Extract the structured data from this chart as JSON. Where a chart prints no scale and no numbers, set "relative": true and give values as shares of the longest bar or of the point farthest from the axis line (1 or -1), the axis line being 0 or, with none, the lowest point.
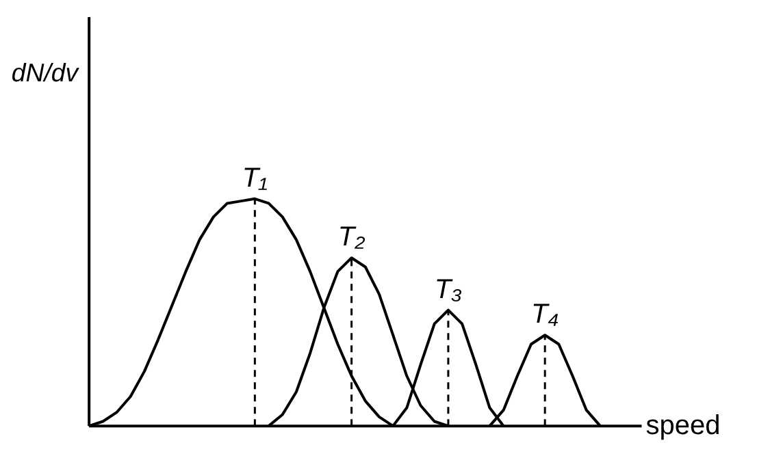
{
  "chart_data": {
    "type": "line",
    "relative": true,
    "xlabel": "speed",
    "ylabel": "dN/dv",
    "categories": [
      null,
      null,
      null,
      null,
      null,
      null,
      null,
      null,
      null,
      null,
      null,
      null,
      null,
      null,
      null,
      null,
      null,
      null,
      null,
      null,
      null,
      null,
      null,
      null,
      null,
      null,
      null,
      null,
      null,
      null,
      null,
      null,
      null,
      null,
      null,
      null,
      null,
      null,
      null,
      null,
      null
    ],
    "series": [
      {
        "name": "T₁",
        "color": "#000000",
        "values": [
          0,
          0.02,
          0.06,
          0.13,
          0.24,
          0.38,
          0.53,
          0.68,
          0.82,
          0.92,
          0.98,
          0.99,
          1,
          0.98,
          0.92,
          0.82,
          0.68,
          0.52,
          0.36,
          0.22,
          0.11,
          0.04,
          0,
          null,
          null,
          null,
          null,
          null,
          null,
          null,
          null,
          null,
          null,
          null,
          null,
          null,
          null,
          null,
          null,
          null,
          null
        ]
      },
      {
        "name": "T₂",
        "color": "#000000",
        "values": [
          null,
          null,
          null,
          null,
          null,
          null,
          null,
          null,
          null,
          null,
          null,
          null,
          null,
          0,
          0.05,
          0.15,
          0.32,
          0.52,
          0.68,
          0.74,
          0.7,
          0.58,
          0.4,
          0.22,
          0.09,
          0.02,
          0,
          null,
          null,
          null,
          null,
          null,
          null,
          null,
          null,
          null,
          null,
          null,
          null,
          null,
          null
        ]
      },
      {
        "name": "T₃",
        "color": "#000000",
        "values": [
          null,
          null,
          null,
          null,
          null,
          null,
          null,
          null,
          null,
          null,
          null,
          null,
          null,
          null,
          null,
          null,
          null,
          null,
          null,
          null,
          null,
          null,
          0,
          0.08,
          0.27,
          0.45,
          0.51,
          0.45,
          0.27,
          0.08,
          0,
          null,
          null,
          null,
          null,
          null,
          null,
          null,
          null,
          null,
          null
        ]
      },
      {
        "name": "T₄",
        "color": "#000000",
        "values": [
          null,
          null,
          null,
          null,
          null,
          null,
          null,
          null,
          null,
          null,
          null,
          null,
          null,
          null,
          null,
          null,
          null,
          null,
          null,
          null,
          null,
          null,
          null,
          null,
          null,
          null,
          null,
          null,
          null,
          0,
          0.07,
          0.22,
          0.36,
          0.4,
          0.36,
          0.22,
          0.07,
          0,
          null,
          null,
          null
        ]
      }
    ]
  }
}
